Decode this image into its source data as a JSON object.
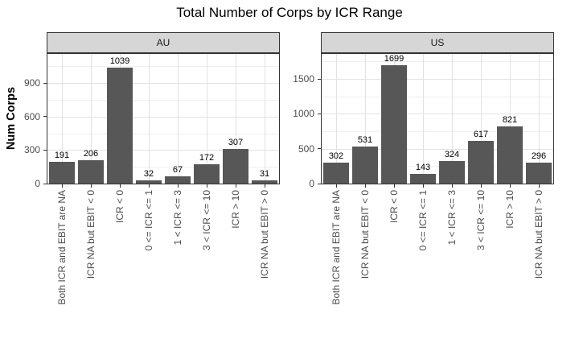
{
  "title": "Total Number of Corps by ICR Range",
  "colors": {
    "bar_fill": "#575757",
    "strip_background": "#d6d6d6",
    "panel_border": "#333333",
    "grid_major": "#e2e2e2",
    "grid_minor": "#efefef",
    "axis_text": "#4d4d4d",
    "value_label_text": "#000000"
  },
  "chart_data": {
    "type": "bar",
    "title": "Total Number of Corps by ICR Range",
    "xlabel": "",
    "ylabel": "Num Corps",
    "grid": true,
    "legend": "none",
    "categories": [
      "Both ICR and EBIT are NA",
      "ICR NA but EBIT < 0",
      "ICR < 0",
      "0 <= ICR <= 1",
      "1 < ICR <= 3",
      "3 < ICR <= 10",
      "ICR > 10",
      "ICR NA but EBIT > 0"
    ],
    "facets": [
      {
        "label": "AU",
        "values": [
          191,
          206,
          1039,
          32,
          67,
          172,
          307,
          31
        ],
        "yticks": [
          0,
          300,
          600,
          900
        ],
        "yticks_minor": [
          150,
          450,
          750,
          1050
        ],
        "ylim": [
          0,
          1160
        ]
      },
      {
        "label": "US",
        "values": [
          302,
          531,
          1699,
          143,
          324,
          617,
          821,
          296
        ],
        "yticks": [
          0,
          500,
          1000,
          1500
        ],
        "yticks_minor": [
          250,
          750,
          1250,
          1750
        ],
        "ylim": [
          0,
          1858
        ]
      }
    ]
  }
}
